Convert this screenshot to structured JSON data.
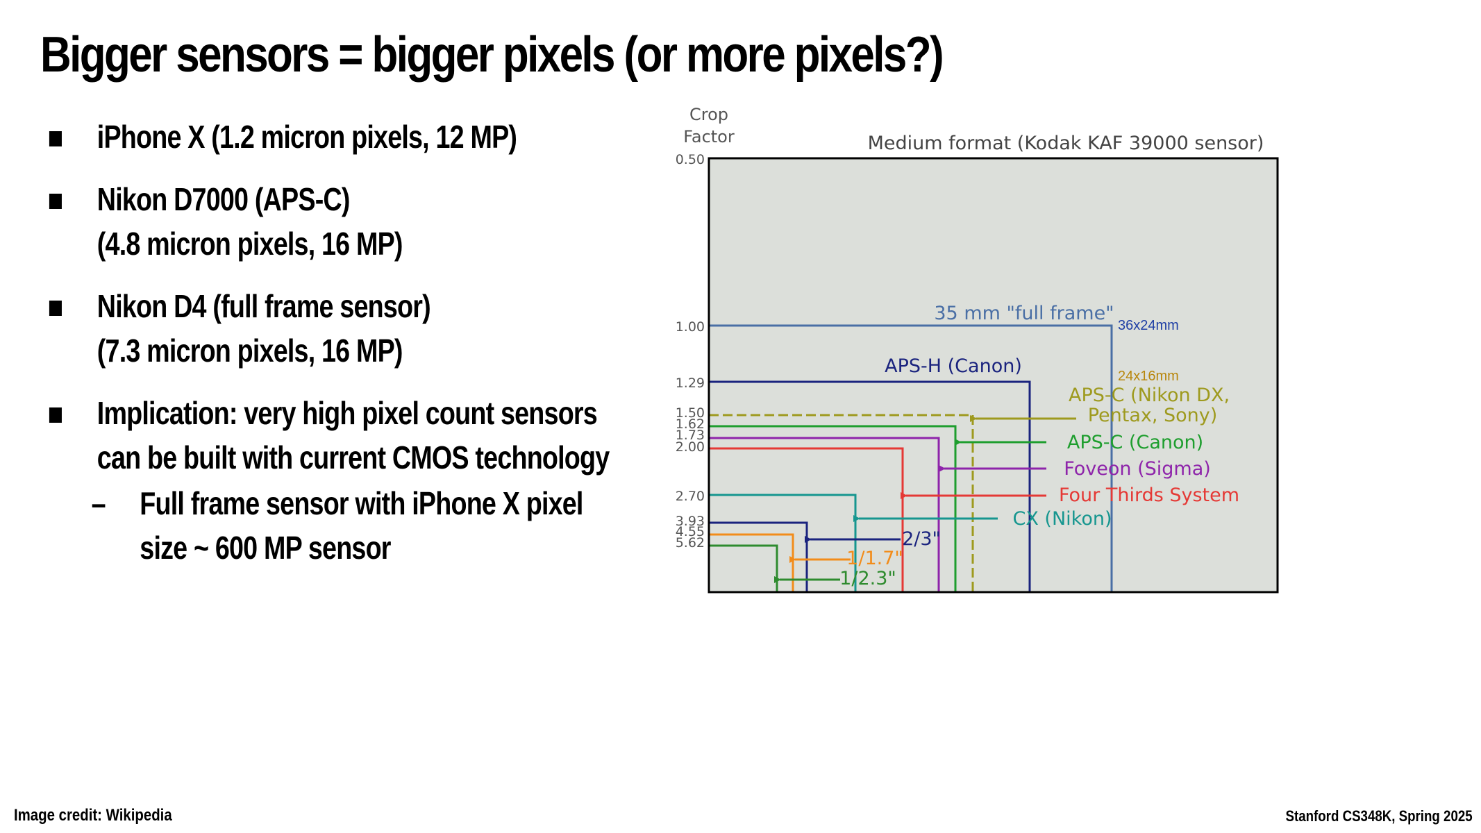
{
  "slide": {
    "title": "Bigger sensors = bigger pixels (or more pixels?)",
    "bullets": [
      {
        "lines": [
          "iPhone X (1.2 micron pixels, 12 MP)"
        ]
      },
      {
        "lines": [
          "Nikon D7000 (APS-C)",
          "(4.8 micron pixels, 16 MP)"
        ]
      },
      {
        "lines": [
          "Nikon D4 (full frame sensor)",
          "(7.3 micron pixels, 16 MP)"
        ]
      },
      {
        "lines": [
          "Implication: very high pixel count sensors",
          "can be built with current CMOS technology"
        ]
      }
    ],
    "sub_bullet": {
      "dash": "–",
      "lines": [
        "Full frame sensor with iPhone X pixel",
        "size ~ 600 MP sensor"
      ]
    },
    "image_credit": "Image credit: Wikipedia",
    "course_credit": "Stanford CS348K, Spring 2025"
  },
  "diagram": {
    "axis_label_line1": "Crop",
    "axis_label_line2": "Factor",
    "medium_format_label": "Medium format (Kodak KAF 39000 sensor)",
    "full_frame_dim": "36x24mm",
    "apsc_dim": "24x16mm",
    "ticks": [
      "0.50",
      "1.00",
      "1.29",
      "1.50",
      "1.62",
      "1.73",
      "2.00",
      "2.70",
      "3.93",
      "4.55",
      "5.62"
    ],
    "sensors": [
      {
        "label": "35 mm \"full frame\"",
        "crop": "1.00",
        "color": "#4a6fa5"
      },
      {
        "label": "APS-H (Canon)",
        "crop": "1.29",
        "color": "#1a237e"
      },
      {
        "label": "APS-C (Nikon DX,",
        "label2": "Pentax, Sony)",
        "crop": "1.50",
        "color": "#9e9a1e"
      },
      {
        "label": "APS-C (Canon)",
        "crop": "1.62",
        "color": "#1e9e2e"
      },
      {
        "label": "Foveon (Sigma)",
        "crop": "1.73",
        "color": "#8e24aa"
      },
      {
        "label": "Four Thirds System",
        "crop": "2.00",
        "color": "#e53935"
      },
      {
        "label": "CX (Nikon)",
        "crop": "2.70",
        "color": "#16968f"
      },
      {
        "label": "2/3\"",
        "crop": "3.93",
        "color": "#1a237e"
      },
      {
        "label": "1/1.7\"",
        "crop": "4.55",
        "color": "#f28c1a"
      },
      {
        "label": "1/2.3\"",
        "crop": "5.62",
        "color": "#2e8b2e"
      }
    ],
    "colors": {
      "medium_fill": "#dcdfda",
      "frame": "#000000",
      "full_frame_dim_text": "#1f3fa5",
      "apsc_dim_text": "#b8860b",
      "tick_text": "#555555"
    }
  }
}
